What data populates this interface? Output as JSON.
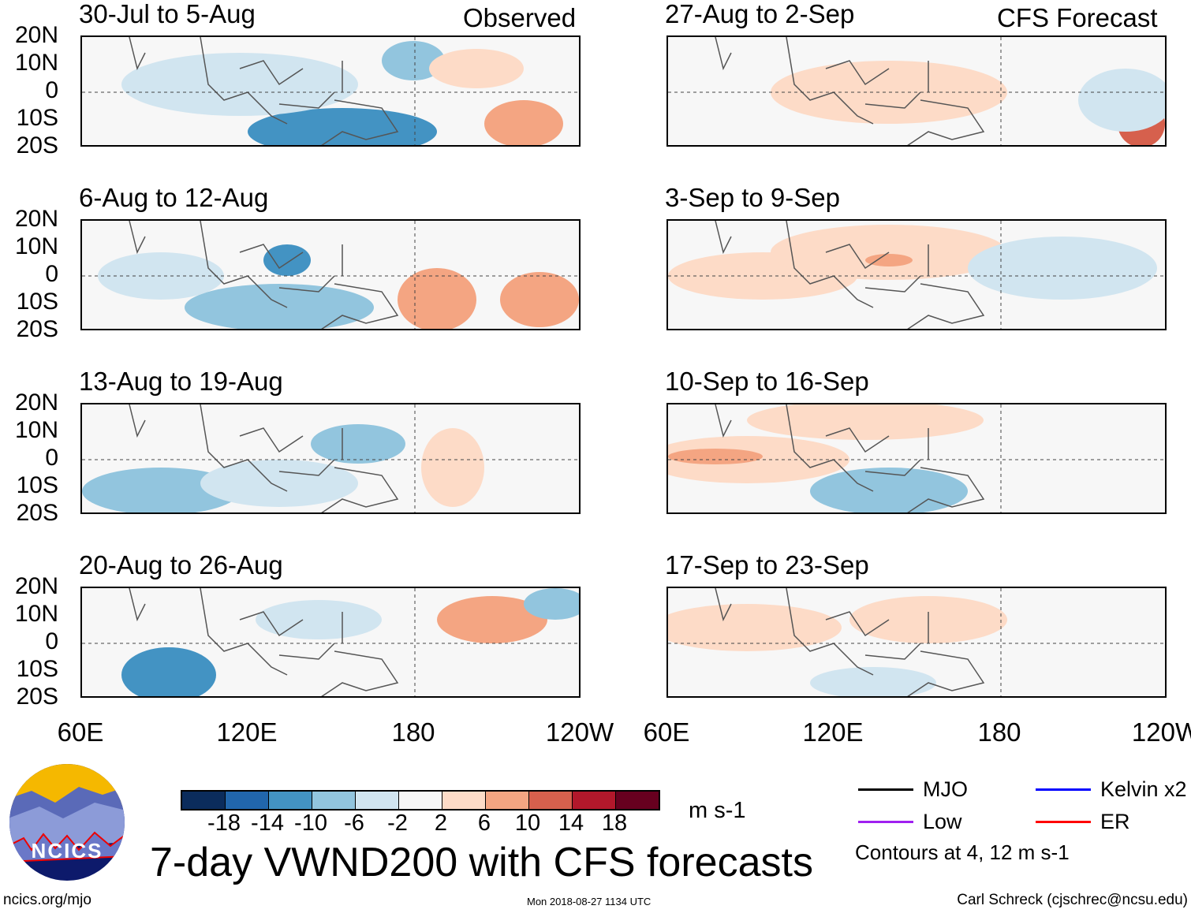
{
  "headers": {
    "observed": "Observed",
    "forecast": "CFS Forecast"
  },
  "panels": {
    "left": [
      "30-Jul to 5-Aug",
      "6-Aug to 12-Aug",
      "13-Aug to 19-Aug",
      "20-Aug to 26-Aug"
    ],
    "right": [
      "27-Aug to 2-Sep",
      "3-Sep to 9-Sep",
      "10-Sep to 16-Sep",
      "17-Sep to 23-Sep"
    ]
  },
  "lat_labels": [
    "20N",
    "10N",
    "0",
    "10S",
    "20S"
  ],
  "lon_labels": [
    "60E",
    "120E",
    "180",
    "120W"
  ],
  "colorbar": {
    "colors": [
      "#0b2c5c",
      "#2166ac",
      "#4393c3",
      "#92c5de",
      "#d1e5f0",
      "#f7f7f7",
      "#fddbc7",
      "#f4a582",
      "#d6604d",
      "#b2182b",
      "#67001f"
    ],
    "labels": [
      "-18",
      "-14",
      "-10",
      "-6",
      "-2",
      "2",
      "6",
      "10",
      "14",
      "18"
    ],
    "units": "m s-1"
  },
  "legend": {
    "items": [
      {
        "label": "MJO",
        "color": "#000000"
      },
      {
        "label": "Kelvin x2",
        "color": "#0000ff"
      },
      {
        "label": "Low",
        "color": "#a020f0"
      },
      {
        "label": "ER",
        "color": "#ff0000"
      }
    ],
    "note": "Contours at 4, 12 m s-1"
  },
  "title": "7-day VWND200 with CFS forecasts",
  "logo": {
    "text": "NCICS"
  },
  "footer": {
    "url": "ncics.org/mjo",
    "timestamp": "Mon 2018-08-27 1134 UTC",
    "author": "Carl Schreck (cjschrec@ncsu.edu)"
  }
}
